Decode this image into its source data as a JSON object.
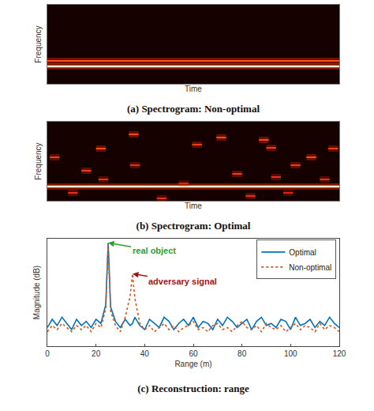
{
  "chart_data": [
    {
      "type": "spectrogram",
      "title": "(a) Spectrogram: Non-optimal",
      "x_label": "Time",
      "y_label": "Frequency",
      "xlim": [
        0,
        24
      ],
      "ylim": [
        0,
        1
      ],
      "tick_labels": false,
      "tones": [
        {
          "t0": 0,
          "t1": 24,
          "f": 0.29,
          "level": 0.85
        },
        {
          "t0": 0,
          "t1": 24,
          "f": 0.22,
          "level": 1
        }
      ]
    },
    {
      "type": "spectrogram",
      "title": "(b) Spectrogram: Optimal",
      "x_label": "Time",
      "y_label": "Frequency",
      "xlim": [
        0,
        24
      ],
      "ylim": [
        0,
        1
      ],
      "tick_labels": false,
      "tones": [
        {
          "t0": 0,
          "t1": 24,
          "f": 0.18,
          "level": 1
        },
        {
          "t0": 0.2,
          "t1": 1.0,
          "f": 0.55,
          "level": 0.7
        },
        {
          "t0": 1.7,
          "t1": 2.5,
          "f": 0.1,
          "level": 0.6
        },
        {
          "t0": 2.8,
          "t1": 3.6,
          "f": 0.38,
          "level": 0.7
        },
        {
          "t0": 4.0,
          "t1": 4.8,
          "f": 0.66,
          "level": 0.8
        },
        {
          "t0": 4.2,
          "t1": 5.0,
          "f": 0.27,
          "level": 0.6
        },
        {
          "t0": 6.7,
          "t1": 7.5,
          "f": 0.84,
          "level": 0.8
        },
        {
          "t0": 6.8,
          "t1": 7.6,
          "f": 0.45,
          "level": 0.6
        },
        {
          "t0": 9.0,
          "t1": 9.8,
          "f": 0.03,
          "level": 0.6
        },
        {
          "t0": 10.8,
          "t1": 11.6,
          "f": 0.22,
          "level": 0.5
        },
        {
          "t0": 11.9,
          "t1": 12.7,
          "f": 0.71,
          "level": 0.7
        },
        {
          "t0": 13.9,
          "t1": 14.7,
          "f": 0.8,
          "level": 0.8
        },
        {
          "t0": 15.2,
          "t1": 16.0,
          "f": 0.34,
          "level": 0.7
        },
        {
          "t0": 16.3,
          "t1": 17.1,
          "f": 0.06,
          "level": 0.6
        },
        {
          "t0": 17.4,
          "t1": 18.2,
          "f": 0.77,
          "level": 0.8
        },
        {
          "t0": 18.0,
          "t1": 18.8,
          "f": 0.67,
          "level": 0.7
        },
        {
          "t0": 18.4,
          "t1": 19.2,
          "f": 0.3,
          "level": 0.6
        },
        {
          "t0": 19.4,
          "t1": 20.2,
          "f": 0.1,
          "level": 0.5
        },
        {
          "t0": 20.0,
          "t1": 20.8,
          "f": 0.45,
          "level": 0.7
        },
        {
          "t0": 21.3,
          "t1": 22.1,
          "f": 0.55,
          "level": 0.8
        },
        {
          "t0": 22.4,
          "t1": 23.2,
          "f": 0.27,
          "level": 0.6
        },
        {
          "t0": 23.1,
          "t1": 23.9,
          "f": 0.66,
          "level": 0.7
        }
      ]
    },
    {
      "type": "line",
      "title": "(c) Reconstruction: range",
      "x_label": "Range (m)",
      "y_label": "Magnitude (dB)",
      "xlim": [
        0,
        120
      ],
      "xticks": [
        0,
        20,
        40,
        60,
        80,
        100,
        120
      ],
      "ylim": [
        -50,
        2
      ],
      "tick_labels": "x",
      "legend": "upper right",
      "x": [
        0,
        2,
        4,
        6,
        8,
        10,
        12,
        14,
        16,
        18,
        20,
        22,
        24,
        25,
        26,
        28,
        30,
        32,
        34,
        35,
        36,
        38,
        40,
        42,
        44,
        46,
        48,
        50,
        52,
        54,
        56,
        58,
        60,
        62,
        64,
        66,
        68,
        70,
        72,
        74,
        76,
        78,
        80,
        82,
        84,
        86,
        88,
        90,
        92,
        94,
        96,
        98,
        100,
        102,
        104,
        106,
        108,
        110,
        112,
        114,
        116,
        118,
        120
      ],
      "series": [
        {
          "name": "Optimal",
          "color": "#0072bd",
          "line_style": "solid",
          "values": [
            -41,
            -37,
            -40,
            -36,
            -39,
            -42,
            -37,
            -40,
            -38,
            -41,
            -37,
            -39,
            -30,
            0,
            -31,
            -38,
            -41,
            -37,
            -40,
            -39,
            -36,
            -40,
            -42,
            -37,
            -39,
            -41,
            -36,
            -38,
            -42,
            -39,
            -37,
            -40,
            -36,
            -41,
            -38,
            -39,
            -42,
            -37,
            -40,
            -36,
            -38,
            -41,
            -39,
            -37,
            -42,
            -38,
            -36,
            -40,
            -39,
            -41,
            -37,
            -38,
            -42,
            -36,
            -40,
            -39,
            -37,
            -41,
            -38,
            -40,
            -36,
            -39,
            -41
          ]
        },
        {
          "name": "Non-optimal",
          "color": "#d95319",
          "line_style": "dotted",
          "values": [
            -43,
            -40,
            -42,
            -39,
            -41,
            -43,
            -40,
            -42,
            -40,
            -43,
            -39,
            -41,
            -32,
            -1,
            -33,
            -40,
            -43,
            -36,
            -26,
            -15,
            -27,
            -39,
            -42,
            -40,
            -43,
            -41,
            -39,
            -42,
            -40,
            -43,
            -41,
            -40,
            -38,
            -42,
            -41,
            -43,
            -40,
            -39,
            -42,
            -41,
            -43,
            -40,
            -38,
            -41,
            -42,
            -40,
            -43,
            -39,
            -41,
            -42,
            -40,
            -43,
            -41,
            -39,
            -42,
            -40,
            -41,
            -43,
            -39,
            -42,
            -40,
            -41,
            -43
          ]
        }
      ],
      "annotations": [
        {
          "text": "real object",
          "x": 25,
          "y": 0,
          "color": "#2ca02c"
        },
        {
          "text": "adversary signal",
          "x": 35,
          "y": -15,
          "color": "#a31515"
        }
      ]
    }
  ]
}
